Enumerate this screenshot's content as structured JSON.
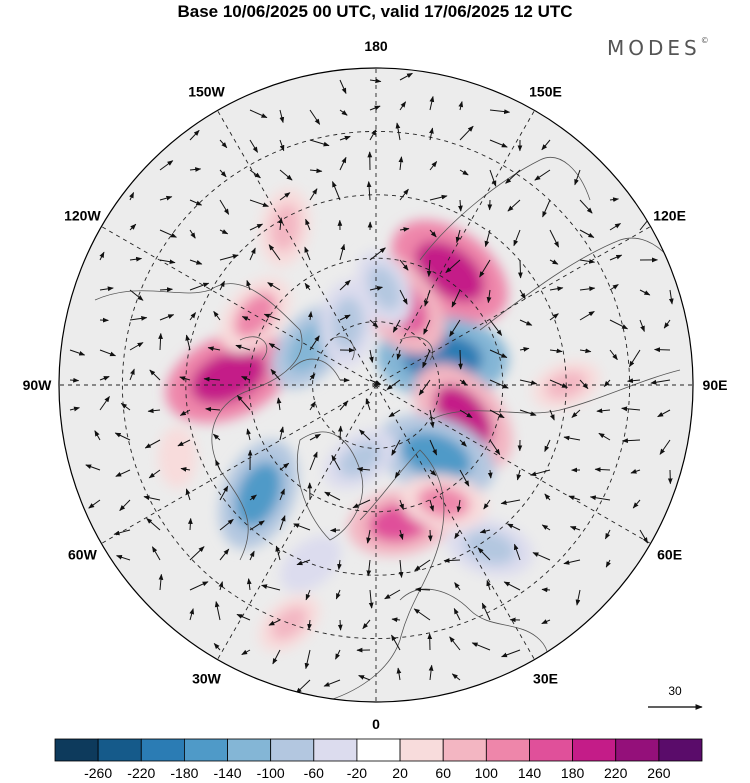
{
  "title": "Base 10/06/2025 00 UTC, valid 17/06/2025 12 UTC",
  "brand": {
    "name": "MODES",
    "mark": "©"
  },
  "meridians": [
    {
      "label": "180",
      "lon": 180
    },
    {
      "label": "150E",
      "lon": 150
    },
    {
      "label": "120E",
      "lon": 120
    },
    {
      "label": "90E",
      "lon": 90
    },
    {
      "label": "60E",
      "lon": 60
    },
    {
      "label": "30E",
      "lon": 30
    },
    {
      "label": "0",
      "lon": 0
    },
    {
      "label": "30W",
      "lon": -30
    },
    {
      "label": "60W",
      "lon": -60
    },
    {
      "label": "90W",
      "lon": -90
    },
    {
      "label": "120W",
      "lon": -120
    },
    {
      "label": "150W",
      "lon": -150
    }
  ],
  "reference_vector": {
    "label": "30"
  },
  "colorbar": {
    "ticks": [
      "-260",
      "-220",
      "-180",
      "-140",
      "-100",
      "-60",
      "-20",
      "20",
      "60",
      "100",
      "140",
      "180",
      "220",
      "260"
    ],
    "colors": [
      "#0d3a5c",
      "#155a8a",
      "#2b7cb4",
      "#4f9ac8",
      "#84b6d6",
      "#b3c7e0",
      "#dcdcee",
      "#ffffff",
      "#f8dcdc",
      "#f3b6c2",
      "#ee86aa",
      "#e0509a",
      "#c41c88",
      "#94107a",
      "#5a0c6a"
    ]
  },
  "anomalies": [
    {
      "lon": 147,
      "lat": 58,
      "value": 200
    },
    {
      "lon": 112,
      "lat": 73,
      "value": -200
    },
    {
      "lon": 163,
      "lat": 70,
      "value": 160
    },
    {
      "lon": 70,
      "lat": 68,
      "value": 180
    },
    {
      "lon": 40,
      "lat": 68,
      "value": -180
    },
    {
      "lon": -93,
      "lat": 55,
      "value": 200
    },
    {
      "lon": -120,
      "lat": 57,
      "value": 100
    },
    {
      "lon": -150,
      "lat": 47,
      "value": 80
    },
    {
      "lon": -47,
      "lat": 52,
      "value": -160
    },
    {
      "lon": -120,
      "lat": 72,
      "value": -120
    },
    {
      "lon": -155,
      "lat": 74,
      "value": -100
    },
    {
      "lon": 175,
      "lat": 67,
      "value": -80
    },
    {
      "lon": 10,
      "lat": 57,
      "value": 140
    },
    {
      "lon": 35,
      "lat": 43,
      "value": -100
    },
    {
      "lon": -12,
      "lat": 72,
      "value": -80
    },
    {
      "lon": 30,
      "lat": 58,
      "value": 100
    },
    {
      "lon": 90,
      "lat": 45,
      "value": 60
    },
    {
      "lon": -70,
      "lat": 40,
      "value": 40
    },
    {
      "lon": -20,
      "lat": 30,
      "value": 60
    },
    {
      "lon": -20,
      "lat": 45,
      "value": -60
    }
  ]
}
